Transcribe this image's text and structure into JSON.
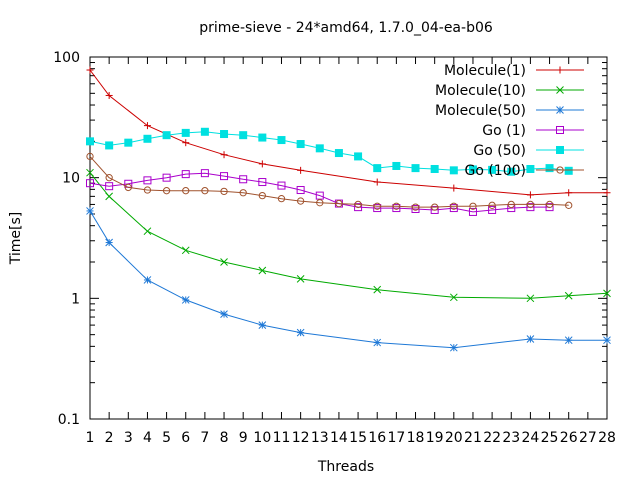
{
  "chart_data": {
    "type": "line",
    "title": "prime-sieve - 24*amd64, 1.7.0_04-ea-b06",
    "xlabel": "Threads",
    "ylabel": "Time[s]",
    "yscale": "log",
    "ylim": [
      0.1,
      100
    ],
    "yticks": [
      0.1,
      1,
      10,
      100
    ],
    "ytick_labels": [
      "0.1",
      "1",
      "10",
      "100"
    ],
    "xticks": [
      1,
      2,
      3,
      4,
      5,
      6,
      7,
      8,
      9,
      10,
      11,
      12,
      13,
      14,
      15,
      16,
      17,
      18,
      19,
      20,
      21,
      22,
      23,
      24,
      25,
      26,
      27,
      28
    ],
    "xtick_labels": [
      "1",
      "2",
      "3",
      "4",
      "5",
      "6",
      "7",
      "8",
      "9",
      "10",
      "11",
      "12",
      "13",
      "14",
      "15",
      "16",
      "17",
      "18",
      "19",
      "20",
      "21",
      "22",
      "23",
      "24",
      "25",
      "26",
      "27",
      "28"
    ],
    "legend_position": "top-right",
    "series": [
      {
        "name": "Molecule(1)",
        "color": "#cc0000",
        "marker": "plus",
        "x": [
          1,
          2,
          4,
          6,
          8,
          10,
          12,
          16,
          20,
          24,
          26,
          28
        ],
        "y": [
          78,
          48,
          27,
          19.5,
          15.5,
          13,
          11.5,
          9.2,
          8.2,
          7.2,
          7.5,
          7.5
        ]
      },
      {
        "name": "Molecule(10)",
        "color": "#00aa00",
        "marker": "cross",
        "x": [
          1,
          2,
          4,
          6,
          8,
          10,
          12,
          16,
          20,
          24,
          26,
          28
        ],
        "y": [
          11,
          7,
          3.6,
          2.5,
          2.0,
          1.7,
          1.45,
          1.18,
          1.02,
          1.0,
          1.05,
          1.1
        ]
      },
      {
        "name": "Molecule(50)",
        "color": "#1e78d6",
        "marker": "star",
        "x": [
          1,
          2,
          4,
          6,
          8,
          10,
          12,
          16,
          20,
          24,
          26,
          28
        ],
        "y": [
          5.3,
          2.9,
          1.42,
          0.97,
          0.74,
          0.6,
          0.52,
          0.43,
          0.39,
          0.46,
          0.45,
          0.45
        ]
      },
      {
        "name": "Go (1)",
        "color": "#aa00cc",
        "marker": "square-open",
        "x": [
          1,
          2,
          3,
          4,
          5,
          6,
          7,
          8,
          9,
          10,
          11,
          12,
          13,
          14,
          15,
          16,
          17,
          18,
          19,
          20,
          21,
          22,
          23,
          24,
          25
        ],
        "y": [
          9.0,
          8.5,
          8.9,
          9.5,
          10.0,
          10.7,
          10.9,
          10.3,
          9.7,
          9.2,
          8.6,
          7.9,
          7.1,
          6.1,
          5.7,
          5.6,
          5.6,
          5.5,
          5.4,
          5.6,
          5.2,
          5.4,
          5.6,
          5.7,
          5.7
        ]
      },
      {
        "name": "Go (50)",
        "color": "#00e0e0",
        "marker": "square-filled",
        "x": [
          1,
          2,
          3,
          4,
          5,
          6,
          7,
          8,
          9,
          10,
          11,
          12,
          13,
          14,
          15,
          16,
          17,
          18,
          19,
          20,
          21,
          22,
          23,
          24,
          25,
          26
        ],
        "y": [
          20,
          18.5,
          19.5,
          21,
          22.5,
          23.5,
          24,
          23,
          22.5,
          21.5,
          20.5,
          19,
          17.5,
          16,
          15,
          12,
          12.5,
          12,
          11.8,
          11.5,
          11.7,
          11.6,
          11.2,
          11.8,
          12,
          11.4
        ]
      },
      {
        "name": "Go (100)",
        "color": "#a0522d",
        "marker": "circle-open",
        "x": [
          1,
          2,
          3,
          4,
          5,
          6,
          7,
          8,
          9,
          10,
          11,
          12,
          13,
          14,
          15,
          16,
          17,
          18,
          19,
          20,
          21,
          22,
          23,
          24,
          25,
          26
        ],
        "y": [
          15,
          10,
          8.3,
          7.9,
          7.8,
          7.8,
          7.8,
          7.7,
          7.5,
          7.1,
          6.7,
          6.4,
          6.2,
          6.1,
          6.0,
          5.8,
          5.8,
          5.7,
          5.7,
          5.8,
          5.8,
          5.9,
          6.0,
          6.0,
          6.0,
          5.9
        ]
      }
    ]
  }
}
